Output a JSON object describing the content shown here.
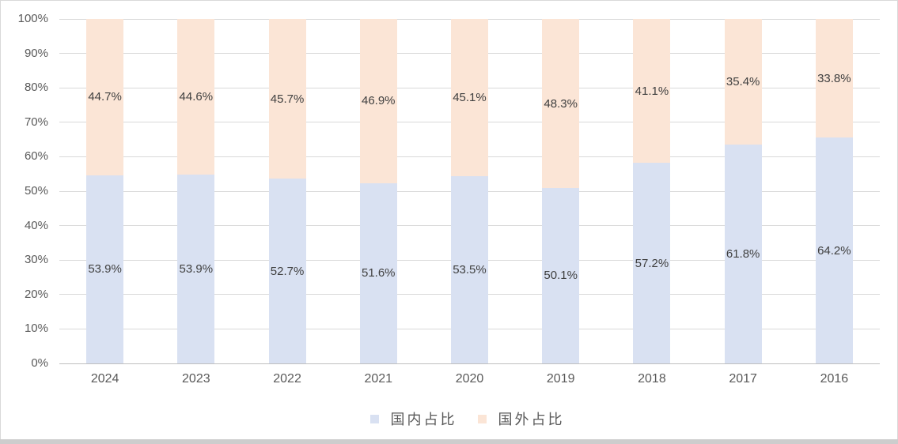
{
  "chart_data": {
    "type": "bar",
    "subtype": "stacked-100-percent",
    "title": "",
    "categories": [
      "2024",
      "2023",
      "2022",
      "2021",
      "2020",
      "2019",
      "2018",
      "2017",
      "2016"
    ],
    "series": [
      {
        "name": "国内占比",
        "color": "#d9e1f2",
        "values": [
          53.9,
          53.9,
          52.7,
          51.6,
          53.5,
          50.1,
          57.2,
          61.8,
          64.2
        ]
      },
      {
        "name": "国外占比",
        "color": "#fbe5d6",
        "values": [
          44.7,
          44.6,
          45.7,
          46.9,
          45.1,
          48.3,
          41.1,
          35.4,
          33.8
        ]
      }
    ],
    "value_suffix": "%",
    "data_labels": "shown, centered in each segment, one decimal place",
    "y_axis": {
      "min": 0,
      "max": 100,
      "step": 10,
      "tick_labels": [
        "0%",
        "10%",
        "20%",
        "30%",
        "40%",
        "50%",
        "60%",
        "70%",
        "80%",
        "90%",
        "100%"
      ]
    },
    "grid": true,
    "legend": {
      "position": "bottom",
      "items": [
        "国内占比",
        "国外占比"
      ]
    }
  },
  "palette": {
    "gridline": "#d9d9d9",
    "axis_line": "#bfbfbf",
    "border": "#d9d9d9",
    "bottom_strip": "#cdcdcd",
    "axis_text": "#595959",
    "data_label_text": "#404040"
  }
}
